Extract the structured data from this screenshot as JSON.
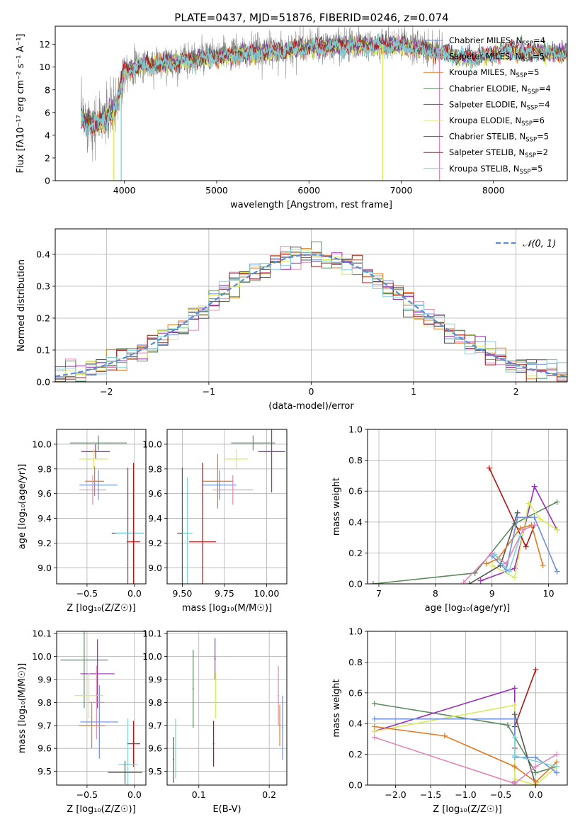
{
  "figure_title": "PLATE=0437, MJD=51876, FIBERID=0246, z=0.074",
  "colors": {
    "chabrier_miles": "#6f8fd9",
    "salpeter_miles": "#e286b8",
    "kroupa_miles": "#e07b20",
    "chabrier_elodie": "#5e8a60",
    "salpeter_elodie": "#9a2fb8",
    "kroupa_elodie": "#d8ec5a",
    "chabrier_stelib": "#555555",
    "salpeter_stelib": "#b01818",
    "kroupa_stelib": "#7fd4d8",
    "data_spectrum": "#8c8c8c",
    "normal_curve": "#5b8bd6"
  },
  "chart_data": [
    {
      "id": "spectrum",
      "type": "line",
      "title": "PLATE=0437, MJD=51876, FIBERID=0246, z=0.074",
      "xlabel": "wavelength [Angstrom, rest frame]",
      "ylabel": "Flux [fλ10⁻¹⁷ erg cm⁻² s⁻¹ A⁻¹]",
      "xlim": [
        3250,
        8800
      ],
      "ylim": [
        0,
        13.6
      ],
      "xticks": [
        4000,
        5000,
        6000,
        7000,
        8000
      ],
      "yticks": [
        0,
        2,
        4,
        6,
        8,
        10,
        12
      ],
      "grid": false,
      "legend_position": "right",
      "legend": [
        {
          "label": "Chabrier MILES, N",
          "sub": "SSP",
          "tail": "=4",
          "color_key": "chabrier_miles"
        },
        {
          "label": "Salpeter MILES, N",
          "sub": "SSP",
          "tail": "=5",
          "color_key": "salpeter_miles"
        },
        {
          "label": "Kroupa MILES, N",
          "sub": "SSP",
          "tail": "=5",
          "color_key": "kroupa_miles"
        },
        {
          "label": "Chabrier ELODIE, N",
          "sub": "SSP",
          "tail": "=4",
          "color_key": "chabrier_elodie"
        },
        {
          "label": "Salpeter ELODIE, N",
          "sub": "SSP",
          "tail": "=4",
          "color_key": "salpeter_elodie"
        },
        {
          "label": "Kroupa ELODIE, N",
          "sub": "SSP",
          "tail": "=6",
          "color_key": "kroupa_elodie"
        },
        {
          "label": "Chabrier STELIB, N",
          "sub": "SSP",
          "tail": "=5",
          "color_key": "chabrier_stelib"
        },
        {
          "label": "Salpeter STELIB, N",
          "sub": "SSP",
          "tail": "=2",
          "color_key": "salpeter_stelib"
        },
        {
          "label": "Kroupa STELIB, N",
          "sub": "SSP",
          "tail": "=5",
          "color_key": "kroupa_stelib"
        }
      ],
      "continuum": [
        [
          3530,
          5.5
        ],
        [
          3700,
          5.0
        ],
        [
          3900,
          6.3
        ],
        [
          4000,
          9.8
        ],
        [
          4200,
          10.2
        ],
        [
          4500,
          10.5
        ],
        [
          5000,
          11.0
        ],
        [
          5500,
          11.4
        ],
        [
          6000,
          11.8
        ],
        [
          6500,
          12.0
        ],
        [
          7000,
          12.0
        ],
        [
          7500,
          11.3
        ],
        [
          8000,
          11.1
        ],
        [
          8500,
          11.6
        ],
        [
          8800,
          11.4
        ]
      ],
      "data_range": [
        3530,
        7450
      ],
      "model_range": [
        3530,
        8800
      ],
      "drops": [
        {
          "x": 3885,
          "color_key": "kroupa_elodie"
        },
        {
          "x": 3965,
          "color_key": "kroupa_stelib"
        },
        {
          "x": 6800,
          "color_key": "kroupa_elodie"
        },
        {
          "x": 7415,
          "color_key": "salpeter_miles"
        }
      ]
    },
    {
      "id": "residual_hist",
      "type": "histogram",
      "xlabel": "(data-model)/error",
      "ylabel": "Normed distribution",
      "xlim": [
        -2.5,
        2.5
      ],
      "ylim": [
        0,
        0.48
      ],
      "xticks": [
        -2,
        -1,
        0,
        1,
        2
      ],
      "yticks": [
        0.0,
        0.1,
        0.2,
        0.3,
        0.4
      ],
      "grid": true,
      "bin_width": 0.1,
      "series_keys": [
        "chabrier_miles",
        "salpeter_miles",
        "kroupa_miles",
        "chabrier_elodie",
        "salpeter_elodie",
        "kroupa_elodie",
        "chabrier_stelib",
        "salpeter_stelib",
        "kroupa_stelib"
      ],
      "normal_label": "𝒩(0, 1)",
      "legend_position": "top-right"
    },
    {
      "id": "age_vs_z",
      "type": "errorbar",
      "xlabel": "Z [log₁₀(Z/Z☉)]",
      "ylabel": "age  [log₁₀(age/yr)]",
      "xlim": [
        -0.82,
        0.12
      ],
      "ylim": [
        8.87,
        10.12
      ],
      "xticks": [
        -0.5,
        0.0
      ],
      "yticks": [
        9.0,
        9.2,
        9.4,
        9.6,
        9.8,
        10.0
      ],
      "grid": true,
      "points": [
        {
          "color_key": "chabrier_elodie",
          "x": -0.38,
          "xerr": 0.3,
          "y": 10.01,
          "yerr": 0.06
        },
        {
          "color_key": "salpeter_elodie",
          "x": -0.41,
          "xerr": 0.15,
          "y": 9.94,
          "yerr": 0.06
        },
        {
          "color_key": "kroupa_elodie",
          "x": -0.43,
          "xerr": 0.15,
          "y": 9.88,
          "yerr": 0.08
        },
        {
          "color_key": "kroupa_miles",
          "x": -0.42,
          "xerr": 0.1,
          "y": 9.7,
          "yerr": 0.12
        },
        {
          "color_key": "chabrier_miles",
          "x": -0.38,
          "xerr": 0.2,
          "y": 9.67,
          "yerr": 0.12
        },
        {
          "color_key": "salpeter_miles",
          "x": -0.44,
          "xerr": 0.14,
          "y": 9.63,
          "yerr": 0.12
        },
        {
          "color_key": "chabrier_stelib",
          "x": -0.07,
          "xerr": 0.17,
          "y": 9.28,
          "yerr": 0.53
        },
        {
          "color_key": "kroupa_stelib",
          "x": -0.05,
          "xerr": 0.15,
          "y": 9.28,
          "yerr": 0.0
        },
        {
          "color_key": "salpeter_stelib",
          "x": -0.01,
          "xerr": 0.07,
          "y": 9.21,
          "yerr": 0.64
        }
      ]
    },
    {
      "id": "age_vs_mass",
      "type": "errorbar",
      "xlabel": "mass [log₁₀(M/M☉)]",
      "ylabel": "",
      "xlim": [
        9.41,
        10.12
      ],
      "ylim": [
        8.87,
        10.12
      ],
      "xticks": [
        9.5,
        9.75,
        10.0
      ],
      "yticks": [
        9.0,
        9.2,
        9.4,
        9.6,
        9.8,
        10.0
      ],
      "grid": true,
      "points": [
        {
          "color_key": "chabrier_elodie",
          "x": 9.92,
          "xerr": 0.13,
          "y": 10.01,
          "yerr": 0.06
        },
        {
          "color_key": "salpeter_elodie",
          "x": 10.03,
          "xerr": 0.08,
          "y": 9.94,
          "yerr": 0.33
        },
        {
          "color_key": "kroupa_elodie",
          "x": 9.82,
          "xerr": 0.07,
          "y": 9.88,
          "yerr": 0.08
        },
        {
          "color_key": "kroupa_miles",
          "x": 9.71,
          "xerr": 0.09,
          "y": 9.7,
          "yerr": 0.22
        },
        {
          "color_key": "chabrier_miles",
          "x": 9.72,
          "xerr": 0.1,
          "y": 9.67,
          "yerr": 0.12
        },
        {
          "color_key": "salpeter_miles",
          "x": 9.8,
          "xerr": 0.12,
          "y": 9.63,
          "yerr": 0.12
        },
        {
          "color_key": "chabrier_stelib",
          "x": 9.5,
          "xerr": 0.03,
          "y": 9.28,
          "yerr": 0.53
        },
        {
          "color_key": "kroupa_stelib",
          "x": 9.53,
          "xerr": 0.03,
          "y": 9.28,
          "yerr": 0.45
        },
        {
          "color_key": "salpeter_stelib",
          "x": 9.62,
          "xerr": 0.08,
          "y": 9.21,
          "yerr": 0.64
        }
      ]
    },
    {
      "id": "mass_weight_vs_age",
      "type": "line",
      "xlabel": "age  [log₁₀(age/yr)]",
      "ylabel": "mass weight",
      "xlim": [
        6.8,
        10.33
      ],
      "ylim": [
        0,
        1.0
      ],
      "xticks": [
        7,
        8,
        9,
        10
      ],
      "yticks": [
        0.0,
        0.2,
        0.4,
        0.6,
        0.8,
        1.0
      ],
      "grid": true,
      "series": [
        {
          "color_key": "chabrier_elodie",
          "x": [
            6.9,
            8.7,
            9.4,
            10.15
          ],
          "y": [
            0.0,
            0.07,
            0.39,
            0.53
          ]
        },
        {
          "color_key": "salpeter_elodie",
          "x": [
            8.8,
            9.4,
            9.75,
            10.15
          ],
          "y": [
            0.02,
            0.1,
            0.63,
            0.35
          ]
        },
        {
          "color_key": "kroupa_elodie",
          "x": [
            9.0,
            9.4,
            9.65,
            9.85,
            10.15
          ],
          "y": [
            0.12,
            0.04,
            0.52,
            0.42,
            0.35
          ]
        },
        {
          "color_key": "salpeter_stelib",
          "x": [
            8.95,
            9.6,
            9.75
          ],
          "y": [
            0.75,
            0.24,
            0.38
          ]
        },
        {
          "color_key": "chabrier_stelib",
          "x": [
            8.6,
            9.15,
            9.45
          ],
          "y": [
            0.0,
            0.12,
            0.46
          ]
        },
        {
          "color_key": "kroupa_miles",
          "x": [
            8.9,
            9.1,
            9.5,
            9.7,
            9.9
          ],
          "y": [
            0.13,
            0.16,
            0.36,
            0.38,
            0.12
          ]
        },
        {
          "color_key": "chabrier_miles",
          "x": [
            9.0,
            9.25,
            9.45,
            9.75,
            10.15
          ],
          "y": [
            0.18,
            0.09,
            0.43,
            0.43,
            0.08
          ]
        },
        {
          "color_key": "salpeter_miles",
          "x": [
            8.5,
            9.0,
            9.25,
            9.55,
            9.75
          ],
          "y": [
            0.01,
            0.2,
            0.13,
            0.35,
            0.38
          ]
        },
        {
          "color_key": "kroupa_stelib",
          "x": [
            9.05,
            9.3,
            9.5
          ],
          "y": [
            0.19,
            0.08,
            0.31
          ]
        }
      ]
    },
    {
      "id": "mass_vs_z",
      "type": "errorbar",
      "xlabel": "Z [log₁₀(Z/Z☉)]",
      "ylabel": "mass [log₁₀(M/M☉)]",
      "xlim": [
        -0.82,
        0.12
      ],
      "ylim": [
        9.44,
        10.11
      ],
      "xticks": [
        -0.5,
        0.0
      ],
      "yticks": [
        9.5,
        9.6,
        9.7,
        9.8,
        9.9,
        10.0,
        10.1
      ],
      "grid": true,
      "points": [
        {
          "color_key": "chabrier_elodie",
          "x": -0.53,
          "xerr": 0.25,
          "y": 9.985,
          "yerr": 0.21
        },
        {
          "color_key": "salpeter_elodie",
          "x": -0.39,
          "xerr": 0.18,
          "y": 9.925,
          "yerr": 0.15
        },
        {
          "color_key": "kroupa_elodie",
          "x": -0.48,
          "xerr": 0.15,
          "y": 9.83,
          "yerr": 0.1
        },
        {
          "color_key": "salpeter_miles",
          "x": -0.4,
          "xerr": 0.08,
          "y": 9.8,
          "yerr": 0.16
        },
        {
          "color_key": "chabrier_miles",
          "x": -0.37,
          "xerr": 0.2,
          "y": 9.715,
          "yerr": 0.16
        },
        {
          "color_key": "kroupa_miles",
          "x": -0.45,
          "xerr": 0.14,
          "y": 9.7,
          "yerr": 0.1
        },
        {
          "color_key": "salpeter_stelib",
          "x": -0.01,
          "xerr": 0.07,
          "y": 9.62,
          "yerr": 0.1
        },
        {
          "color_key": "kroupa_stelib",
          "x": -0.07,
          "xerr": 0.1,
          "y": 9.53,
          "yerr": 0.2
        },
        {
          "color_key": "chabrier_stelib",
          "x": -0.1,
          "xerr": 0.18,
          "y": 9.495,
          "yerr": 0.05
        }
      ]
    },
    {
      "id": "mass_vs_ebv",
      "type": "errorbar",
      "xlabel": "E(B-V)",
      "ylabel": "",
      "xlim": [
        0.055,
        0.225
      ],
      "ylim": [
        9.44,
        10.11
      ],
      "xticks": [
        0.1,
        0.2
      ],
      "yticks": [
        9.5,
        9.6,
        9.7,
        9.8,
        9.9,
        10.0,
        10.1
      ],
      "grid": true,
      "points": [
        {
          "color_key": "chabrier_elodie",
          "x": 0.092,
          "y": 9.86,
          "yerr": 0.17
        },
        {
          "color_key": "salpeter_elodie",
          "x": 0.123,
          "y": 9.99,
          "yerr": 0.09
        },
        {
          "color_key": "kroupa_elodie",
          "x": 0.124,
          "y": 9.83,
          "yerr": 0.1
        },
        {
          "color_key": "salpeter_stelib",
          "x": 0.121,
          "y": 9.62,
          "yerr": 0.1
        },
        {
          "color_key": "chabrier_stelib",
          "x": 0.064,
          "y": 9.55,
          "yerr": 0.1
        },
        {
          "color_key": "kroupa_stelib",
          "x": 0.067,
          "y": 9.6,
          "yerr": 0.13
        },
        {
          "color_key": "salpeter_miles",
          "x": 0.213,
          "y": 9.83,
          "yerr": 0.13
        },
        {
          "color_key": "kroupa_miles",
          "x": 0.215,
          "y": 9.7,
          "yerr": 0.09
        },
        {
          "color_key": "chabrier_miles",
          "x": 0.219,
          "y": 9.69,
          "yerr": 0.14
        }
      ]
    },
    {
      "id": "mass_weight_vs_z",
      "type": "line",
      "xlabel": "Z [log₁₀(Z/Z☉)]",
      "ylabel": "mass weight",
      "xlim": [
        -2.4,
        0.45
      ],
      "ylim": [
        0,
        1.0
      ],
      "xticks": [
        -2.0,
        -1.5,
        -1.0,
        -0.5,
        0.0
      ],
      "yticks": [
        0.0,
        0.2,
        0.4,
        0.6,
        0.8,
        1.0
      ],
      "grid": true,
      "series": [
        {
          "color_key": "chabrier_elodie",
          "x": [
            -2.3,
            -0.4,
            0.0,
            0.3
          ],
          "y": [
            0.53,
            0.39,
            0.08,
            0.12
          ]
        },
        {
          "color_key": "salpeter_elodie",
          "x": [
            -2.3,
            -0.3,
            -0.3
          ],
          "y": [
            0.35,
            0.63,
            0.02
          ]
        },
        {
          "color_key": "kroupa_elodie",
          "x": [
            -2.3,
            -0.3,
            -0.3,
            0.0,
            0.3
          ],
          "y": [
            0.35,
            0.52,
            0.04,
            0.0,
            0.12
          ]
        },
        {
          "color_key": "salpeter_stelib",
          "x": [
            -0.3,
            -0.3,
            0.0
          ],
          "y": [
            0.24,
            0.38,
            0.75
          ]
        },
        {
          "color_key": "chabrier_stelib",
          "x": [
            -0.3,
            0.0
          ],
          "y": [
            0.46,
            0.0
          ]
        },
        {
          "color_key": "kroupa_miles",
          "x": [
            -2.3,
            -1.3,
            -0.3,
            0.0,
            0.3
          ],
          "y": [
            0.38,
            0.32,
            0.12,
            0.02,
            0.15
          ]
        },
        {
          "color_key": "chabrier_miles",
          "x": [
            -2.3,
            -0.3,
            -0.3,
            0.0,
            0.3
          ],
          "y": [
            0.43,
            0.43,
            0.18,
            0.18,
            0.08
          ]
        },
        {
          "color_key": "salpeter_miles",
          "x": [
            -2.3,
            -0.3,
            0.0,
            0.3
          ],
          "y": [
            0.31,
            0.01,
            0.12,
            0.2
          ]
        },
        {
          "color_key": "kroupa_stelib",
          "x": [
            -0.3,
            -0.3,
            0.3
          ],
          "y": [
            0.31,
            0.19,
            0.12
          ]
        }
      ]
    }
  ]
}
